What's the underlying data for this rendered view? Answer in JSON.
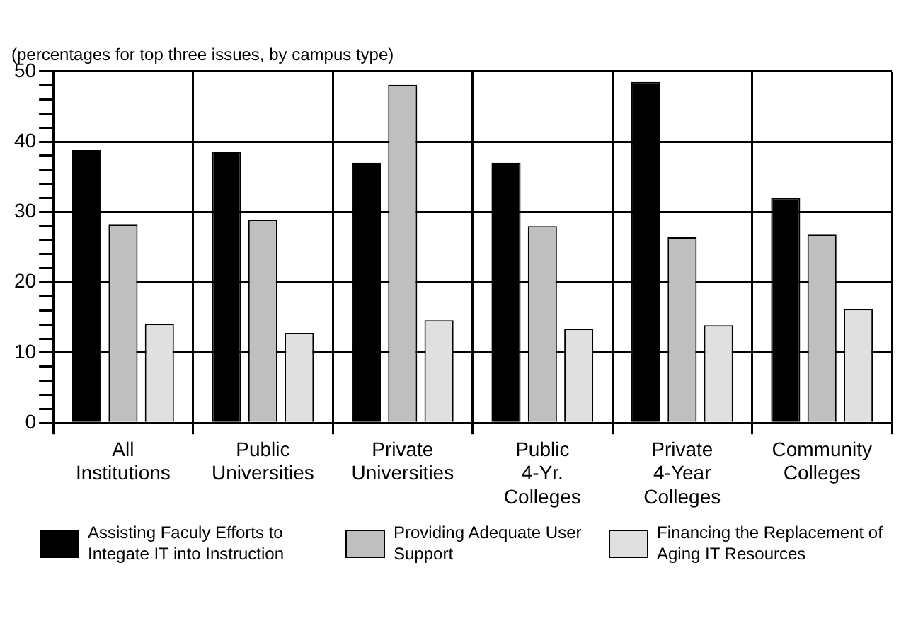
{
  "chart_data": {
    "type": "bar",
    "subtitle": "(percentages for top three issues, by campus type)",
    "categories": [
      "All Institutions",
      "Public Universities",
      "Private Universities",
      "Public 4-Yr. Colleges",
      "Private 4-Year Colleges",
      "Community Colleges"
    ],
    "series": [
      {
        "name": "Assisting Faculy Efforts to Integate IT into Instruction",
        "color": "#000000",
        "values": [
          38.8,
          38.6,
          37.0,
          37.0,
          48.5,
          32.0
        ]
      },
      {
        "name": "Providing Adequate User Support",
        "color": "#bfbfbf",
        "values": [
          28.2,
          28.9,
          48.1,
          28.0,
          26.4,
          26.8
        ]
      },
      {
        "name": "Financing the Replacement of Aging IT Resources",
        "color": "#e0e0e0",
        "values": [
          14.1,
          12.8,
          14.6,
          13.4,
          13.9,
          16.2
        ]
      }
    ],
    "ylim": [
      0,
      50
    ],
    "yticks": [
      0,
      {
        "value": 2,
        "label": null
      },
      {
        "value": 4,
        "label": null
      },
      {
        "value": 6,
        "label": null
      },
      {
        "value": 8,
        "label": null
      },
      10,
      {
        "value": 12,
        "label": null
      },
      {
        "value": 14,
        "label": null
      },
      {
        "value": 16,
        "label": null
      },
      {
        "value": 18,
        "label": null
      },
      20,
      {
        "value": 22,
        "label": null
      },
      {
        "value": 24,
        "label": null
      },
      {
        "value": 26,
        "label": null
      },
      {
        "value": 28,
        "label": null
      },
      30,
      {
        "value": 32,
        "label": null
      },
      {
        "value": 34,
        "label": null
      },
      {
        "value": 36,
        "label": null
      },
      {
        "value": 38,
        "label": null
      },
      40,
      {
        "value": 42,
        "label": null
      },
      {
        "value": 44,
        "label": null
      },
      {
        "value": 46,
        "label": null
      },
      {
        "value": 48,
        "label": null
      },
      50
    ],
    "grid": true,
    "legend": "bottom"
  }
}
